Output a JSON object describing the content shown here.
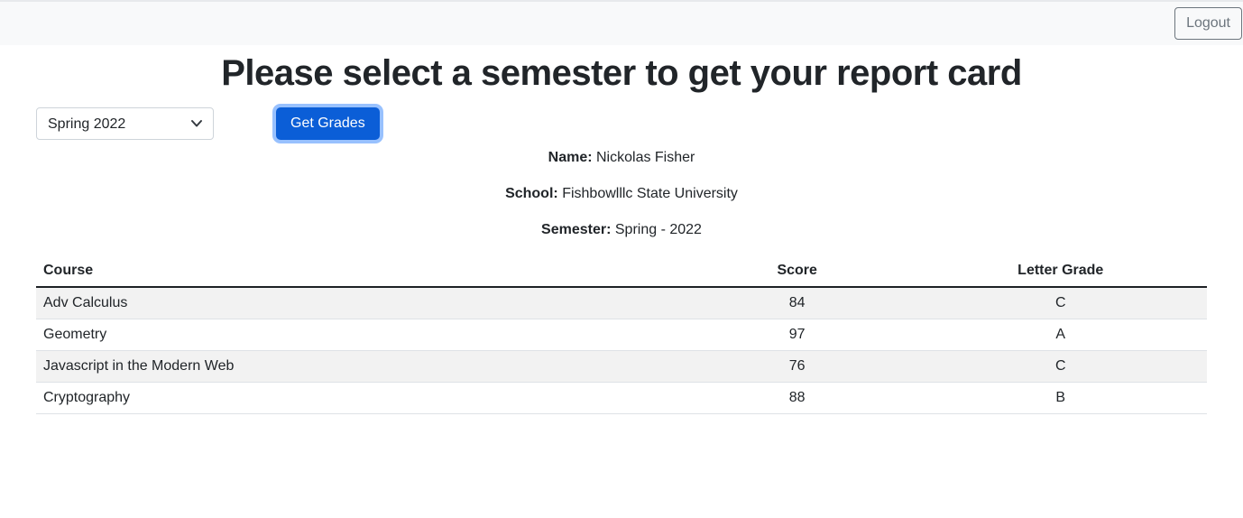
{
  "header": {
    "logout_label": "Logout"
  },
  "title": "Please select a semester to get your report card",
  "controls": {
    "semester_select": {
      "value": "Spring 2022",
      "chevron_icon": "chevron-down"
    },
    "get_grades_label": "Get Grades"
  },
  "student": {
    "name_label": "Name:",
    "name": "Nickolas Fisher",
    "school_label": "School:",
    "school": "Fishbowlllc State University",
    "semester_label": "Semester:",
    "semester": "Spring - 2022"
  },
  "table": {
    "columns": [
      "Course",
      "Score",
      "Letter Grade"
    ],
    "rows": [
      {
        "course": "Adv Calculus",
        "score": "84",
        "letter": "C"
      },
      {
        "course": "Geometry",
        "score": "97",
        "letter": "A"
      },
      {
        "course": "Javascript in the Modern Web",
        "score": "76",
        "letter": "C"
      },
      {
        "course": "Cryptography",
        "score": "88",
        "letter": "B"
      }
    ]
  },
  "colors": {
    "primary": "#0b5ed7",
    "focus_ring": "rgba(49,132,253,0.5)",
    "band": "#f8f9fa",
    "secondary": "#6c757d",
    "stripe": "rgba(0,0,0,0.05)",
    "top_line": "#e7e9ec"
  }
}
